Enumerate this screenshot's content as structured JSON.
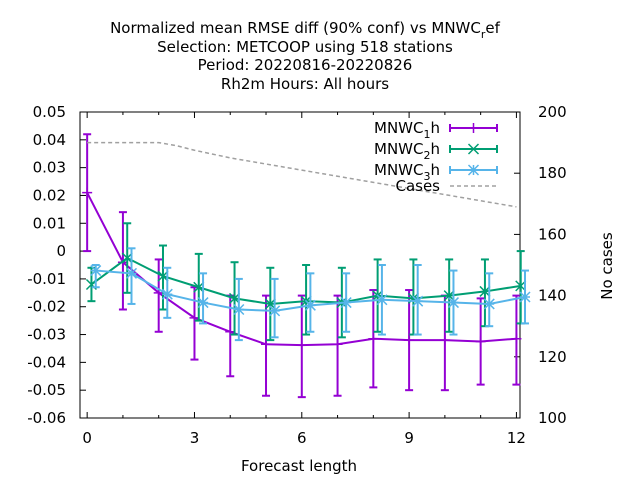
{
  "chart_data": {
    "type": "line",
    "title_lines": [
      "Normalized mean RMSE diff (90% conf) vs MNWC_ref",
      "Selection: METCOOP using   518 stations",
      "Period: 20220816-20220826",
      "Rh2m   Hours:  All hours"
    ],
    "xlabel": "Forecast length",
    "ylabel": "",
    "y2label": "No cases",
    "xlim": [
      -0.2,
      12.1
    ],
    "ylim": [
      -0.06,
      0.05
    ],
    "y2lim": [
      100,
      200
    ],
    "xticks": [
      0,
      3,
      6,
      9,
      12
    ],
    "yticks": [
      0.05,
      0.04,
      0.03,
      0.02,
      0.01,
      0,
      -0.01,
      -0.02,
      -0.03,
      -0.04,
      -0.05,
      -0.06
    ],
    "ytick_labels": [
      "0.05",
      "0.04",
      "0.03",
      "0.02",
      "0.01",
      "0",
      "-0.01",
      "-0.02",
      "-0.03",
      "-0.04",
      "-0.05",
      "-0.06"
    ],
    "y2ticks": [
      100,
      120,
      140,
      160,
      180,
      200
    ],
    "legend_position": "top-right",
    "x": [
      0,
      1,
      2,
      3,
      4,
      5,
      6,
      7,
      8,
      9,
      10,
      11,
      12
    ],
    "series": [
      {
        "name": "MNWC_1h",
        "legend_base": "MNWC",
        "legend_sub": "1",
        "legend_suffix": "h",
        "color": "#9400d3",
        "marker": "plus",
        "y": [
          0.021,
          -0.004,
          -0.015,
          -0.024,
          -0.029,
          -0.0335,
          -0.0338,
          -0.0335,
          -0.0315,
          -0.032,
          -0.032,
          -0.0325,
          -0.0315
        ],
        "ylow": [
          0.0,
          -0.021,
          -0.029,
          -0.039,
          -0.045,
          -0.052,
          -0.0525,
          -0.052,
          -0.049,
          -0.05,
          -0.05,
          -0.048,
          -0.048
        ],
        "yhigh": [
          0.042,
          0.014,
          -0.003,
          -0.013,
          -0.016,
          -0.016,
          -0.016,
          -0.016,
          -0.014,
          -0.014,
          -0.016,
          -0.017,
          -0.016
        ]
      },
      {
        "name": "MNWC_2h",
        "legend_base": "MNWC",
        "legend_sub": "2",
        "legend_suffix": "h",
        "color": "#009e73",
        "marker": "cross",
        "y": [
          -0.012,
          -0.0025,
          -0.009,
          -0.013,
          -0.017,
          -0.019,
          -0.018,
          -0.0185,
          -0.016,
          -0.017,
          -0.016,
          -0.0145,
          -0.0125
        ],
        "ylow": [
          -0.018,
          -0.015,
          -0.021,
          -0.025,
          -0.03,
          -0.032,
          -0.03,
          -0.031,
          -0.029,
          -0.03,
          -0.029,
          -0.027,
          -0.026
        ],
        "yhigh": [
          -0.006,
          0.01,
          0.002,
          -0.001,
          -0.004,
          -0.006,
          -0.005,
          -0.006,
          -0.003,
          -0.003,
          -0.003,
          -0.003,
          0.0
        ]
      },
      {
        "name": "MNWC_3h",
        "legend_base": "MNWC",
        "legend_sub": "3",
        "legend_suffix": "h",
        "color": "#56b4e9",
        "marker": "star",
        "y": [
          -0.007,
          -0.008,
          -0.0155,
          -0.0185,
          -0.021,
          -0.0215,
          -0.0195,
          -0.0185,
          -0.0175,
          -0.018,
          -0.0185,
          -0.019,
          -0.0165
        ],
        "ylow": [
          -0.013,
          -0.019,
          -0.024,
          -0.026,
          -0.032,
          -0.031,
          -0.029,
          -0.029,
          -0.03,
          -0.03,
          -0.03,
          -0.027,
          -0.026
        ],
        "yhigh": [
          -0.005,
          0.001,
          -0.006,
          -0.008,
          -0.01,
          -0.01,
          -0.008,
          -0.008,
          -0.005,
          -0.005,
          -0.007,
          -0.008,
          -0.007
        ]
      },
      {
        "name": "Cases",
        "legend_base": "Cases",
        "legend_sub": "",
        "legend_suffix": "",
        "color": "#a0a0a0",
        "marker": "none",
        "axis": "y2",
        "dashed": true,
        "x": [
          0,
          1,
          2,
          2.5,
          3,
          4,
          5,
          6,
          7,
          8,
          9,
          10,
          11,
          12
        ],
        "y2": [
          190,
          190,
          190,
          189,
          187.5,
          185,
          183,
          181,
          179,
          177,
          175,
          173,
          171,
          169
        ]
      }
    ]
  }
}
